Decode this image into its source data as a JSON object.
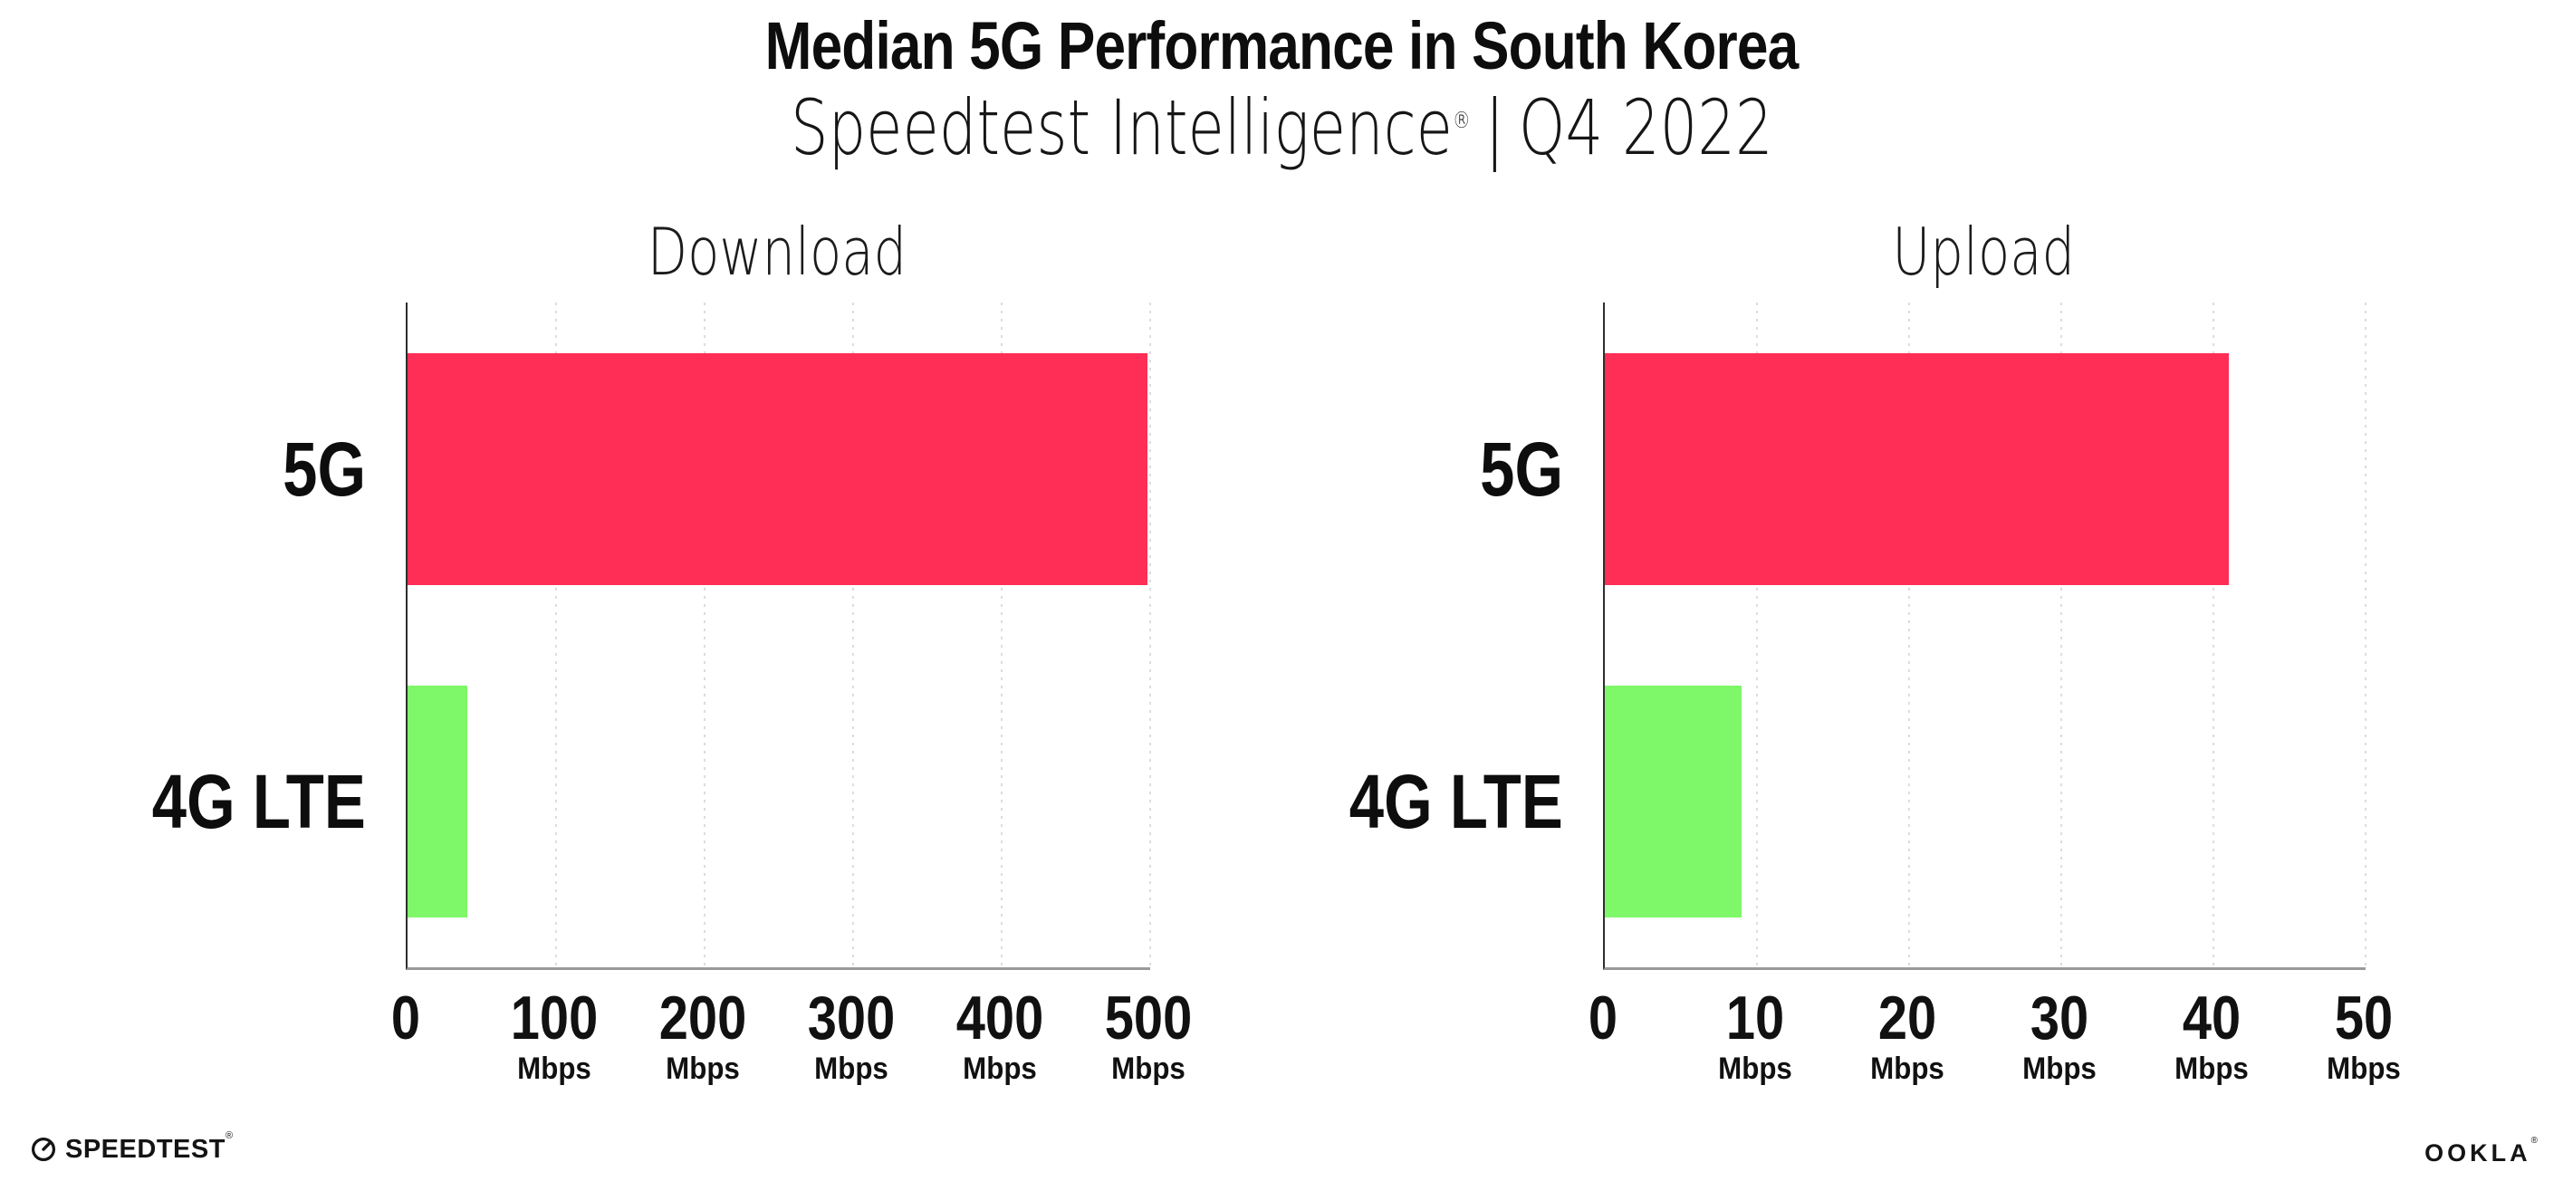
{
  "header": {
    "title": "Median 5G Performance in South Korea",
    "subtitle": {
      "product": "Speedtest Intelligence",
      "registered": "®",
      "separator": "|",
      "period": "Q4 2022"
    }
  },
  "colors": {
    "bar_5g": "#ff2e56",
    "bar_4g_lte": "#7ef768",
    "gridline": "#dcdce4",
    "y_axis_line": "#2e2e2e",
    "x_axis_line": "#9a9a9a",
    "text": "#111111",
    "background": "#ffffff"
  },
  "chart_data": [
    {
      "type": "bar",
      "orientation": "horizontal",
      "title": "Download",
      "categories": [
        "5G",
        "4G LTE"
      ],
      "values": [
        498,
        40
      ],
      "unit": "Mbps",
      "xlim": [
        0,
        500
      ],
      "xticks": [
        0,
        100,
        200,
        300,
        400,
        500
      ],
      "grid": "vertical-dotted",
      "legend": "none",
      "bar_colors": [
        "#ff2e56",
        "#7ef768"
      ]
    },
    {
      "type": "bar",
      "orientation": "horizontal",
      "title": "Upload",
      "categories": [
        "5G",
        "4G LTE"
      ],
      "values": [
        41,
        9
      ],
      "unit": "Mbps",
      "xlim": [
        0,
        50
      ],
      "xticks": [
        0,
        10,
        20,
        30,
        40,
        50
      ],
      "grid": "vertical-dotted",
      "legend": "none",
      "bar_colors": [
        "#ff2e56",
        "#7ef768"
      ]
    }
  ],
  "footer": {
    "speedtest": {
      "icon": "speedtest-gauge-icon",
      "text": "SPEEDTEST",
      "registered": "®"
    },
    "ookla": {
      "text": "OOKLA",
      "registered": "®"
    }
  }
}
